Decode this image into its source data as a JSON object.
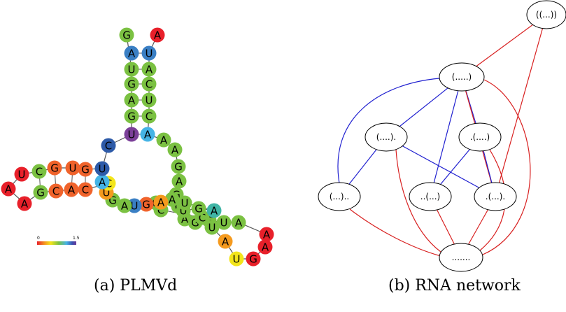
{
  "figure": {
    "caption_a": "(a) PLMVd",
    "caption_b": "(b) RNA network"
  },
  "panel_a": {
    "colorbar": {
      "min_label": "0",
      "max_label": "1.5"
    },
    "palette": {
      "red": "#e8202a",
      "orange": "#f0632b",
      "amber": "#f59a1e",
      "yellow": "#f3e51b",
      "green": "#7bc142",
      "teal": "#3fb5a6",
      "lightblue": "#45b4e6",
      "blue": "#3a7fc4",
      "navy": "#2d5aa8",
      "purple": "#7b3f98"
    },
    "nucleotides": [
      {
        "id": "n1",
        "base": "G",
        "color": "green"
      },
      {
        "id": "n2",
        "base": "A",
        "color": "red"
      },
      {
        "id": "n3",
        "base": "A",
        "color": "blue"
      },
      {
        "id": "n4",
        "base": "U",
        "color": "blue"
      },
      {
        "id": "n5",
        "base": "U",
        "color": "green"
      },
      {
        "id": "n6",
        "base": "A",
        "color": "green"
      },
      {
        "id": "n7",
        "base": "G",
        "color": "green"
      },
      {
        "id": "n8",
        "base": "C",
        "color": "green"
      },
      {
        "id": "n9",
        "base": "A",
        "color": "green"
      },
      {
        "id": "n10",
        "base": "U",
        "color": "green"
      },
      {
        "id": "n11",
        "base": "G",
        "color": "green"
      },
      {
        "id": "n12",
        "base": "C",
        "color": "green"
      },
      {
        "id": "n13",
        "base": "U",
        "color": "purple"
      },
      {
        "id": "n14",
        "base": "A",
        "color": "lightblue"
      },
      {
        "id": "n15",
        "base": "A",
        "color": "green"
      },
      {
        "id": "n16",
        "base": "A",
        "color": "green"
      },
      {
        "id": "n17",
        "base": "G",
        "color": "green"
      },
      {
        "id": "n18",
        "base": "A",
        "color": "green"
      },
      {
        "id": "n19",
        "base": "G",
        "color": "green"
      },
      {
        "id": "n20",
        "base": "C",
        "color": "green"
      },
      {
        "id": "n21",
        "base": "A",
        "color": "green"
      },
      {
        "id": "n22",
        "base": "G",
        "color": "green"
      },
      {
        "id": "n23",
        "base": "G",
        "color": "green"
      },
      {
        "id": "n24",
        "base": "U",
        "color": "green"
      },
      {
        "id": "n25",
        "base": "A",
        "color": "green"
      },
      {
        "id": "n26",
        "base": "A",
        "color": "red"
      },
      {
        "id": "n27",
        "base": "A",
        "color": "red"
      },
      {
        "id": "n28",
        "base": "G",
        "color": "red"
      },
      {
        "id": "n29",
        "base": "U",
        "color": "yellow"
      },
      {
        "id": "n30",
        "base": "A",
        "color": "amber"
      },
      {
        "id": "n31",
        "base": "U",
        "color": "green"
      },
      {
        "id": "n32",
        "base": "C",
        "color": "green"
      },
      {
        "id": "n33",
        "base": "A",
        "color": "teal"
      },
      {
        "id": "n34",
        "base": "G",
        "color": "green"
      },
      {
        "id": "n35",
        "base": "U",
        "color": "green"
      },
      {
        "id": "n36",
        "base": "A",
        "color": "green"
      },
      {
        "id": "n37",
        "base": "C",
        "color": "green"
      },
      {
        "id": "n38",
        "base": "U",
        "color": "green"
      },
      {
        "id": "n39",
        "base": "G",
        "color": "green"
      },
      {
        "id": "n40",
        "base": "A",
        "color": "amber"
      },
      {
        "id": "n41",
        "base": "G",
        "color": "orange"
      },
      {
        "id": "n42",
        "base": "U",
        "color": "blue"
      },
      {
        "id": "n43",
        "base": "A",
        "color": "green"
      },
      {
        "id": "n44",
        "base": "G",
        "color": "green"
      },
      {
        "id": "n45",
        "base": "U",
        "color": "amber"
      },
      {
        "id": "n46",
        "base": "C",
        "color": "yellow"
      },
      {
        "id": "n47",
        "base": "A",
        "color": "lightblue"
      },
      {
        "id": "n48",
        "base": "U",
        "color": "navy"
      },
      {
        "id": "n49",
        "base": "G",
        "color": "orange"
      },
      {
        "id": "n50",
        "base": "U",
        "color": "orange"
      },
      {
        "id": "n51",
        "base": "G",
        "color": "orange"
      },
      {
        "id": "n52",
        "base": "C",
        "color": "green"
      },
      {
        "id": "n53",
        "base": "U",
        "color": "red"
      },
      {
        "id": "n54",
        "base": "A",
        "color": "red"
      },
      {
        "id": "n55",
        "base": "A",
        "color": "red"
      },
      {
        "id": "n56",
        "base": "G",
        "color": "green"
      },
      {
        "id": "n57",
        "base": "C",
        "color": "orange"
      },
      {
        "id": "n58",
        "base": "A",
        "color": "orange"
      },
      {
        "id": "n59",
        "base": "C",
        "color": "orange"
      },
      {
        "id": "n60",
        "base": "C",
        "color": "navy"
      }
    ]
  },
  "panel_b": {
    "edge_colors": {
      "blue": "#2020d0",
      "red": "#d82020"
    },
    "nodes": [
      {
        "id": "top",
        "label": "((...))"
      },
      {
        "id": "n5",
        "label": "(.....)"
      },
      {
        "id": "n4a",
        "label": "(....)."
      },
      {
        "id": "n4b",
        "label": ".(....)"
      },
      {
        "id": "n3a",
        "label": "(...).."
      },
      {
        "id": "n3b",
        "label": "..(...)"
      },
      {
        "id": "n3c",
        "label": ".(...)."
      },
      {
        "id": "open",
        "label": "......."
      }
    ],
    "edges": [
      {
        "from": "top",
        "to": "n5",
        "color": "red"
      },
      {
        "from": "top",
        "to": "n3c",
        "color": "red"
      },
      {
        "from": "n5",
        "to": "n4a",
        "color": "blue"
      },
      {
        "from": "n5",
        "to": "n4b",
        "color": "blue"
      },
      {
        "from": "n5",
        "to": "n3a",
        "color": "blue"
      },
      {
        "from": "n5",
        "to": "n3b",
        "color": "blue"
      },
      {
        "from": "n5",
        "to": "n3c",
        "color": "red"
      },
      {
        "from": "n5",
        "to": "open",
        "color": "red"
      },
      {
        "from": "n4a",
        "to": "n3a",
        "color": "blue"
      },
      {
        "from": "n4a",
        "to": "n3c",
        "color": "blue"
      },
      {
        "from": "n4a",
        "to": "open",
        "color": "red"
      },
      {
        "from": "n4b",
        "to": "n3b",
        "color": "blue"
      },
      {
        "from": "n4b",
        "to": "n3c",
        "color": "blue"
      },
      {
        "from": "n4b",
        "to": "open",
        "color": "red"
      },
      {
        "from": "n3a",
        "to": "open",
        "color": "red"
      },
      {
        "from": "n3b",
        "to": "open",
        "color": "red"
      },
      {
        "from": "n3c",
        "to": "open",
        "color": "red"
      }
    ]
  }
}
